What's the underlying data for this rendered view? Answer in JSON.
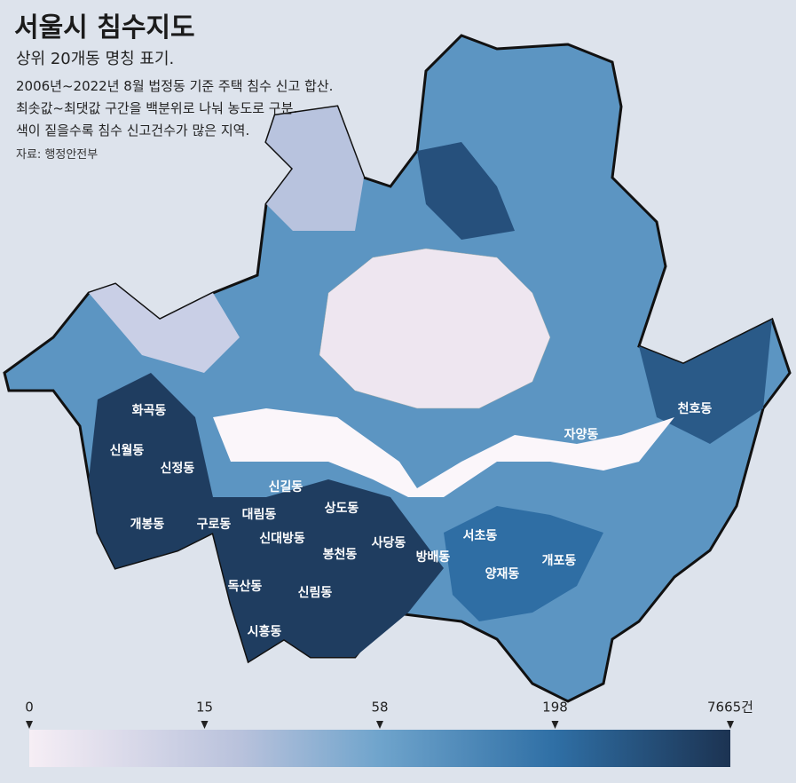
{
  "header": {
    "title": "서울시 침수지도",
    "subtitle": "상위 20개동 명칭 표기.",
    "description": [
      "2006년~2022년 8월 법정동 기준 주택 침수 신고 합산.",
      "최솟값~최댓값 구간을 백분위로 나눠 농도로 구분.",
      "색이 짙을수록 침수 신고건수가 많은 지역."
    ],
    "source": "자료: 행정안전부"
  },
  "labels": [
    "화곡동",
    "신월동",
    "신정동",
    "개봉동",
    "구로동",
    "대림동",
    "신길동",
    "상도동",
    "신대방동",
    "봉천동",
    "사당동",
    "방배동",
    "서초동",
    "양재동",
    "개포동",
    "자양동",
    "천호동",
    "독산동",
    "시흥동",
    "신림동"
  ],
  "legend": {
    "ticks": [
      0,
      15,
      58,
      198,
      {
        "value": 7665,
        "label": "7665건"
      }
    ]
  }
}
